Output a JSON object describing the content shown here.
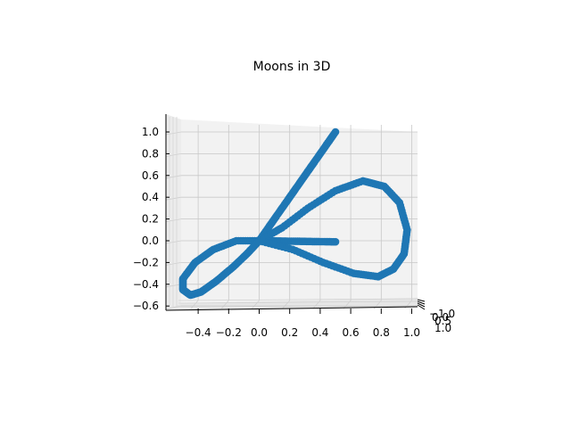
{
  "chart_data": {
    "type": "scatter",
    "title": "Moons in 3D",
    "projection": "3d",
    "view": "front, looking along the y axis",
    "grid": true,
    "series_color": "#1f77b4",
    "x_ticks": [
      "−0.4",
      "−0.2",
      "0.0",
      "0.2",
      "0.4",
      "0.6",
      "0.8",
      "1.0"
    ],
    "z_ticks": [
      "−0.6",
      "−0.4",
      "−0.2",
      "0.0",
      "0.2",
      "0.4",
      "0.6",
      "0.8",
      "1.0"
    ],
    "y_ticks": [
      "−1.0",
      "0.0",
      "0.5",
      "1.0"
    ],
    "xlim": [
      -0.6,
      1.05
    ],
    "zlim": [
      -0.65,
      1.1
    ],
    "curve": {
      "description": "points lying on a figure-eight-like curve in x-z",
      "straight_arm": {
        "from": [
          0.0,
          0.0
        ],
        "to": [
          0.5,
          1.0
        ]
      },
      "lower_lobe_x_range": [
        -0.5,
        0.0
      ],
      "lower_lobe_z_range": [
        -0.5,
        0.0
      ],
      "upper_loop_x_range": [
        0.0,
        1.0
      ],
      "upper_loop_z_range": [
        -0.3,
        0.6
      ],
      "inner_arm": {
        "from": [
          0.0,
          0.0
        ],
        "to": [
          0.5,
          0.0
        ]
      }
    }
  }
}
